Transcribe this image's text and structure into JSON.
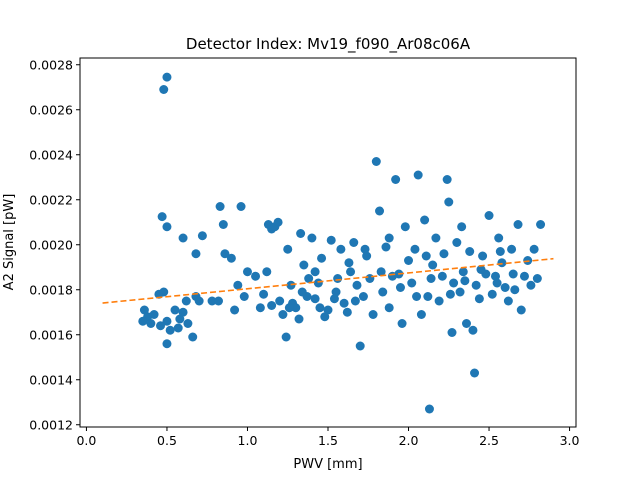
{
  "chart_data": {
    "type": "scatter",
    "title": "Detector Index: Mv19_f090_Ar08c06A",
    "xlabel": "PWV [mm]",
    "ylabel": "A2 Signal [pW]",
    "xlim": [
      -0.04,
      3.04
    ],
    "ylim": [
      0.00119,
      0.00283
    ],
    "x_ticks": [
      0.0,
      0.5,
      1.0,
      1.5,
      2.0,
      2.5,
      3.0
    ],
    "x_tick_labels": [
      "0.0",
      "0.5",
      "1.0",
      "1.5",
      "2.0",
      "2.5",
      "3.0"
    ],
    "y_ticks": [
      0.0012,
      0.0014,
      0.0016,
      0.0018,
      0.002,
      0.0022,
      0.0024,
      0.0026,
      0.0028
    ],
    "y_tick_labels": [
      "0.0012",
      "0.0014",
      "0.0016",
      "0.0018",
      "0.0020",
      "0.0022",
      "0.0024",
      "0.0026",
      "0.0028"
    ],
    "grid": false,
    "colors": {
      "points": "#1f77b4",
      "fit": "#ff7f0e",
      "axes": "#000000",
      "background": "#ffffff"
    },
    "series": [
      {
        "name": "data",
        "style": "markers",
        "points": [
          [
            0.48,
            0.00269
          ],
          [
            0.5,
            0.002745
          ],
          [
            0.47,
            0.002125
          ],
          [
            0.5,
            0.00208
          ],
          [
            0.6,
            0.00203
          ],
          [
            0.36,
            0.00171
          ],
          [
            0.38,
            0.00168
          ],
          [
            0.35,
            0.00166
          ],
          [
            0.4,
            0.00165
          ],
          [
            0.42,
            0.00169
          ],
          [
            0.45,
            0.00178
          ],
          [
            0.46,
            0.00164
          ],
          [
            0.48,
            0.00179
          ],
          [
            0.5,
            0.00166
          ],
          [
            0.52,
            0.00162
          ],
          [
            0.55,
            0.00171
          ],
          [
            0.57,
            0.00163
          ],
          [
            0.58,
            0.00167
          ],
          [
            0.6,
            0.0017
          ],
          [
            0.62,
            0.00175
          ],
          [
            0.5,
            0.00156
          ],
          [
            0.63,
            0.00165
          ],
          [
            0.66,
            0.00159
          ],
          [
            0.68,
            0.00177
          ],
          [
            0.7,
            0.00175
          ],
          [
            0.72,
            0.00204
          ],
          [
            0.68,
            0.00196
          ],
          [
            0.78,
            0.00175
          ],
          [
            0.82,
            0.00175
          ],
          [
            0.83,
            0.00217
          ],
          [
            0.85,
            0.00209
          ],
          [
            0.86,
            0.00196
          ],
          [
            0.9,
            0.00194
          ],
          [
            0.92,
            0.00171
          ],
          [
            0.94,
            0.00182
          ],
          [
            0.96,
            0.00217
          ],
          [
            0.98,
            0.00177
          ],
          [
            1.0,
            0.00188
          ],
          [
            1.05,
            0.00186
          ],
          [
            1.08,
            0.00172
          ],
          [
            1.1,
            0.00178
          ],
          [
            1.13,
            0.00209
          ],
          [
            1.15,
            0.00207
          ],
          [
            1.17,
            0.00208
          ],
          [
            1.19,
            0.0021
          ],
          [
            1.12,
            0.00188
          ],
          [
            1.2,
            0.00175
          ],
          [
            1.22,
            0.00169
          ],
          [
            1.24,
            0.00159
          ],
          [
            1.25,
            0.00198
          ],
          [
            1.27,
            0.00182
          ],
          [
            1.28,
            0.00174
          ],
          [
            1.3,
            0.00172
          ],
          [
            1.32,
            0.00167
          ],
          [
            1.33,
            0.00205
          ],
          [
            1.35,
            0.00191
          ],
          [
            1.37,
            0.00177
          ],
          [
            1.38,
            0.00185
          ],
          [
            1.4,
            0.00203
          ],
          [
            1.42,
            0.00176
          ],
          [
            1.44,
            0.00183
          ],
          [
            1.46,
            0.00194
          ],
          [
            1.48,
            0.00168
          ],
          [
            1.5,
            0.00171
          ],
          [
            1.52,
            0.00202
          ],
          [
            1.54,
            0.00176
          ],
          [
            1.56,
            0.00185
          ],
          [
            1.58,
            0.00198
          ],
          [
            1.6,
            0.00174
          ],
          [
            1.62,
            0.0017
          ],
          [
            1.64,
            0.00188
          ],
          [
            1.66,
            0.00201
          ],
          [
            1.68,
            0.00182
          ],
          [
            1.7,
            0.00155
          ],
          [
            1.72,
            0.00177
          ],
          [
            1.74,
            0.00195
          ],
          [
            1.76,
            0.00185
          ],
          [
            1.78,
            0.00169
          ],
          [
            1.8,
            0.00237
          ],
          [
            1.82,
            0.00215
          ],
          [
            1.84,
            0.00179
          ],
          [
            1.86,
            0.00199
          ],
          [
            1.88,
            0.00172
          ],
          [
            1.9,
            0.00186
          ],
          [
            1.92,
            0.00229
          ],
          [
            1.94,
            0.00187
          ],
          [
            1.96,
            0.00165
          ],
          [
            1.98,
            0.00208
          ],
          [
            2.0,
            0.00193
          ],
          [
            2.02,
            0.00183
          ],
          [
            2.04,
            0.00198
          ],
          [
            2.06,
            0.00231
          ],
          [
            2.08,
            0.00169
          ],
          [
            2.1,
            0.00211
          ],
          [
            2.12,
            0.00177
          ],
          [
            2.13,
            0.00127
          ],
          [
            2.15,
            0.00191
          ],
          [
            2.17,
            0.00203
          ],
          [
            2.19,
            0.00175
          ],
          [
            2.21,
            0.00186
          ],
          [
            2.22,
            0.00196
          ],
          [
            2.24,
            0.00229
          ],
          [
            2.25,
            0.00219
          ],
          [
            2.27,
            0.00161
          ],
          [
            2.28,
            0.00183
          ],
          [
            2.3,
            0.00201
          ],
          [
            2.32,
            0.00179
          ],
          [
            2.34,
            0.00188
          ],
          [
            2.36,
            0.00165
          ],
          [
            2.38,
            0.00197
          ],
          [
            2.4,
            0.00162
          ],
          [
            2.41,
            0.00143
          ],
          [
            2.42,
            0.00182
          ],
          [
            2.44,
            0.00176
          ],
          [
            2.46,
            0.00195
          ],
          [
            2.48,
            0.00187
          ],
          [
            2.5,
            0.00213
          ],
          [
            2.52,
            0.00178
          ],
          [
            2.54,
            0.00186
          ],
          [
            2.56,
            0.00203
          ],
          [
            2.58,
            0.00192
          ],
          [
            2.6,
            0.00181
          ],
          [
            2.62,
            0.00175
          ],
          [
            2.64,
            0.00198
          ],
          [
            2.66,
            0.0018
          ],
          [
            2.68,
            0.00209
          ],
          [
            2.7,
            0.00171
          ],
          [
            2.72,
            0.00186
          ],
          [
            2.74,
            0.00193
          ],
          [
            2.76,
            0.00182
          ],
          [
            2.78,
            0.00198
          ],
          [
            2.8,
            0.00185
          ],
          [
            2.82,
            0.00209
          ],
          [
            1.26,
            0.00172
          ],
          [
            1.34,
            0.00179
          ],
          [
            1.45,
            0.00172
          ],
          [
            1.55,
            0.00179
          ],
          [
            1.63,
            0.00192
          ],
          [
            1.73,
            0.00198
          ],
          [
            1.83,
            0.00188
          ],
          [
            1.95,
            0.00181
          ],
          [
            2.05,
            0.00177
          ],
          [
            2.14,
            0.00185
          ],
          [
            2.26,
            0.00178
          ],
          [
            2.35,
            0.00184
          ],
          [
            2.45,
            0.00189
          ],
          [
            2.55,
            0.00183
          ],
          [
            2.65,
            0.00187
          ],
          [
            1.15,
            0.00173
          ],
          [
            1.42,
            0.00188
          ],
          [
            1.67,
            0.00175
          ],
          [
            1.88,
            0.00203
          ],
          [
            2.11,
            0.00195
          ],
          [
            2.33,
            0.00208
          ],
          [
            2.57,
            0.00197
          ]
        ]
      },
      {
        "name": "linear fit",
        "style": "dashed-line",
        "points": [
          [
            0.1,
            0.001741
          ],
          [
            2.9,
            0.001938
          ]
        ]
      }
    ]
  }
}
